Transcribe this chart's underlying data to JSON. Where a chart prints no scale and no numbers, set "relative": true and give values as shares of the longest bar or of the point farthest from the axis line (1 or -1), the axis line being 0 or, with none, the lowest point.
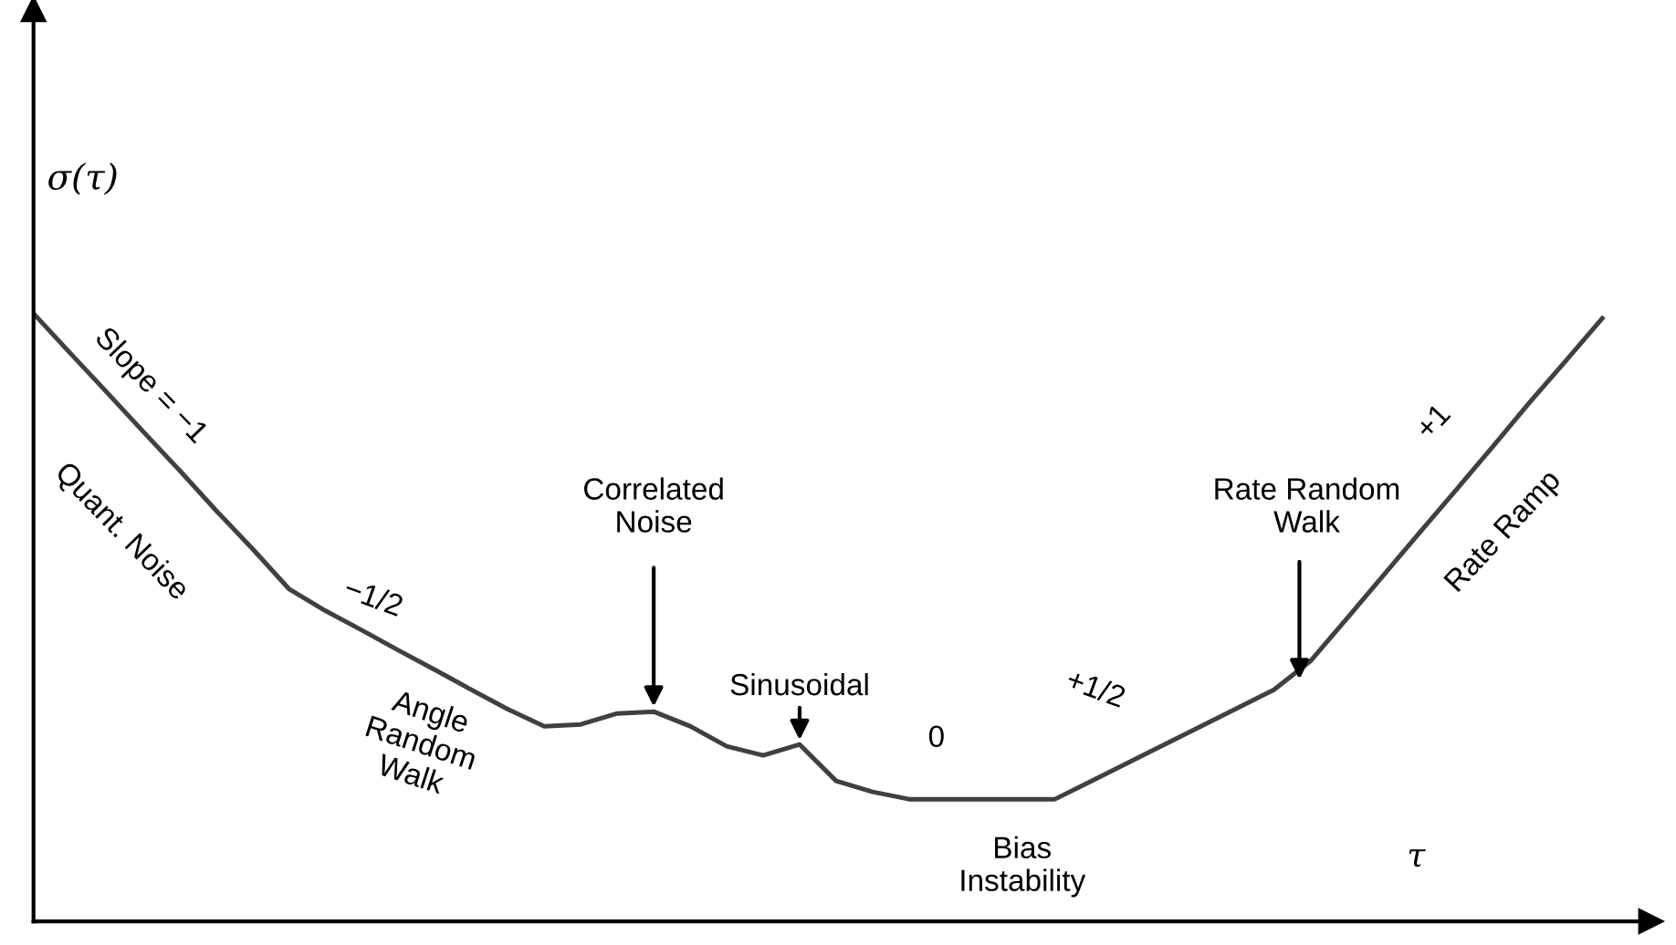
{
  "chart_data": {
    "type": "line",
    "relative": true,
    "xlabel": "τ",
    "ylabel": "σ(τ)",
    "color": "#404040",
    "line_style": "solid",
    "marker": "none",
    "grid": false,
    "legend": false,
    "categories": [
      null,
      null,
      null,
      null,
      null,
      null,
      null,
      null,
      null,
      null,
      null,
      null,
      null,
      null,
      null,
      null,
      null,
      null,
      null,
      null,
      null,
      null,
      null,
      null,
      null,
      null,
      null,
      null,
      null,
      null,
      null,
      null,
      null,
      null,
      null,
      null,
      null,
      null,
      null,
      null,
      null,
      null,
      null,
      null
    ],
    "values": [
      1.0,
      0.935,
      0.871,
      0.806,
      0.742,
      0.676,
      0.613,
      0.547,
      0.511,
      0.479,
      0.446,
      0.414,
      0.381,
      0.349,
      0.321,
      0.324,
      0.342,
      0.345,
      0.321,
      0.288,
      0.273,
      0.291,
      0.231,
      0.213,
      0.201,
      0.201,
      0.201,
      0.201,
      0.201,
      0.231,
      0.261,
      0.291,
      0.321,
      0.351,
      0.381,
      0.428,
      0.498,
      0.569,
      0.64,
      0.71,
      0.781,
      0.853,
      0.922,
      0.992
    ],
    "annotations": [
      "Slope = −1",
      "Quant. Noise",
      "−1/2",
      "Angle\nRandom\nWalk",
      "Correlated\nNoise",
      "Sinusoidal",
      "0",
      "Bias\nInstability",
      "+1/2",
      "Rate Random\nWalk",
      "+1",
      "Rate Ramp"
    ]
  }
}
